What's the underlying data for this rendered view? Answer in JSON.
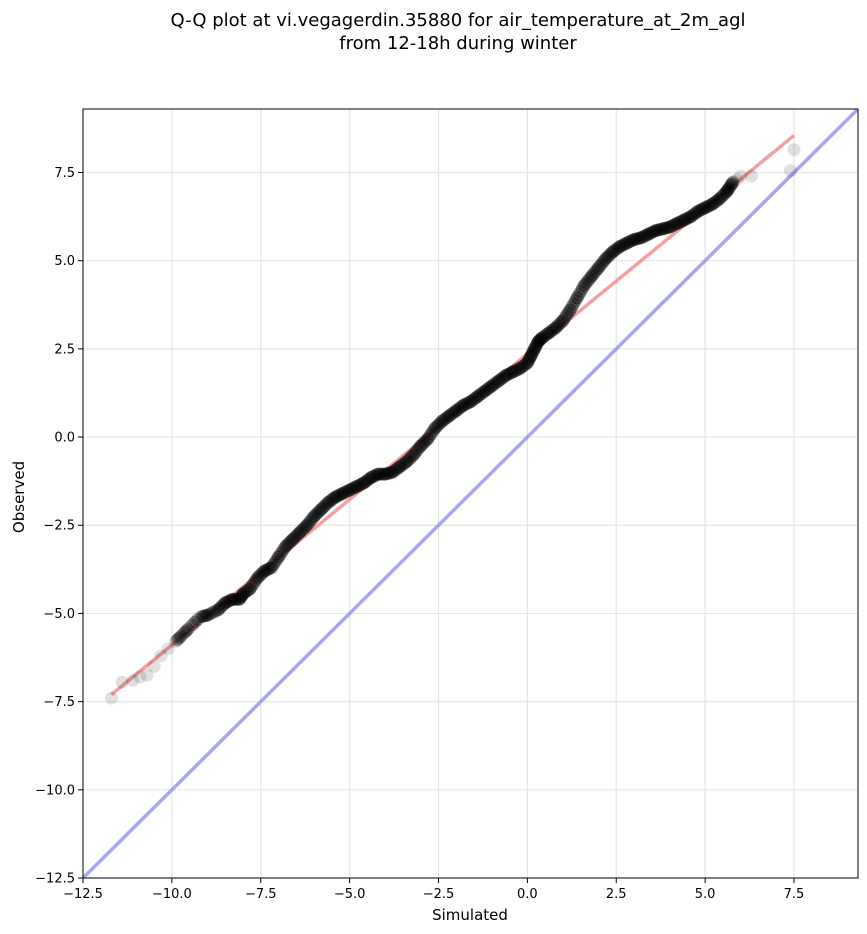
{
  "chart_data": {
    "type": "scatter",
    "title_line1": "Q-Q plot at vi.vegagerdin.35880 for air_temperature_at_2m_agl",
    "title_line2": "from 12-18h during winter",
    "xlabel": "Simulated",
    "ylabel": "Observed",
    "xlim": [
      -12.5,
      9.3
    ],
    "ylim": [
      -12.5,
      9.3
    ],
    "xticks": [
      -12.5,
      -10.0,
      -7.5,
      -5.0,
      -2.5,
      0.0,
      2.5,
      5.0,
      7.5
    ],
    "yticks": [
      -12.5,
      -10.0,
      -7.5,
      -5.0,
      -2.5,
      0.0,
      2.5,
      5.0,
      7.5
    ],
    "xtick_labels": [
      "−12.5",
      "−10.0",
      "−7.5",
      "−5.0",
      "−2.5",
      "0.0",
      "2.5",
      "5.0",
      "7.5"
    ],
    "ytick_labels": [
      "−12.5",
      "−10.0",
      "−7.5",
      "−5.0",
      "−2.5",
      "0.0",
      "2.5",
      "5.0",
      "7.5"
    ],
    "grid": true,
    "colors": {
      "points": "#000000",
      "fit_line": "#f08080",
      "identity_line": "#8888ee"
    },
    "identity_line": {
      "x": [
        -12.5,
        9.3
      ],
      "y": [
        -12.5,
        9.3
      ]
    },
    "fit_line": {
      "x": [
        -11.7,
        7.5
      ],
      "y": [
        -7.3,
        8.55
      ]
    },
    "points": {
      "x": [
        -11.7,
        -11.4,
        -11.1,
        -10.9,
        -10.7,
        -10.5,
        -10.3,
        -10.1,
        -9.9,
        -9.7,
        -9.5,
        -9.2,
        -9.0,
        -8.7,
        -8.5,
        -8.3,
        -8.1,
        -8.0,
        -7.8,
        -7.6,
        -7.4,
        -7.2,
        -7.0,
        -6.8,
        -6.6,
        -6.4,
        -6.2,
        -6.0,
        -5.8,
        -5.6,
        -5.4,
        -5.2,
        -5.0,
        -4.8,
        -4.6,
        -4.4,
        -4.2,
        -4.0,
        -3.8,
        -3.6,
        -3.4,
        -3.2,
        -3.0,
        -2.8,
        -2.6,
        -2.4,
        -2.2,
        -2.0,
        -1.8,
        -1.6,
        -1.4,
        -1.2,
        -1.0,
        -0.8,
        -0.6,
        -0.4,
        -0.2,
        0.0,
        0.1,
        0.2,
        0.3,
        0.4,
        0.6,
        0.8,
        1.0,
        1.2,
        1.4,
        1.6,
        1.8,
        2.0,
        2.2,
        2.4,
        2.6,
        2.8,
        3.0,
        3.2,
        3.4,
        3.6,
        3.8,
        4.0,
        4.2,
        4.4,
        4.6,
        4.8,
        5.0,
        5.2,
        5.4,
        5.6,
        5.7,
        5.8,
        5.9,
        6.0,
        6.3,
        7.4,
        7.5
      ],
      "y": [
        -7.4,
        -6.95,
        -6.9,
        -6.8,
        -6.75,
        -6.5,
        -6.2,
        -6.0,
        -5.8,
        -5.6,
        -5.4,
        -5.1,
        -5.05,
        -4.9,
        -4.7,
        -4.6,
        -4.6,
        -4.45,
        -4.3,
        -4.0,
        -3.8,
        -3.7,
        -3.4,
        -3.1,
        -2.9,
        -2.7,
        -2.5,
        -2.25,
        -2.05,
        -1.85,
        -1.7,
        -1.6,
        -1.5,
        -1.4,
        -1.3,
        -1.15,
        -1.05,
        -1.05,
        -1.0,
        -0.85,
        -0.7,
        -0.5,
        -0.25,
        -0.05,
        0.25,
        0.45,
        0.6,
        0.75,
        0.9,
        1.0,
        1.15,
        1.3,
        1.45,
        1.6,
        1.75,
        1.85,
        1.95,
        2.1,
        2.3,
        2.5,
        2.7,
        2.8,
        2.95,
        3.1,
        3.3,
        3.6,
        3.95,
        4.3,
        4.55,
        4.8,
        5.05,
        5.25,
        5.4,
        5.5,
        5.6,
        5.65,
        5.75,
        5.85,
        5.9,
        5.95,
        6.05,
        6.15,
        6.25,
        6.4,
        6.5,
        6.6,
        6.75,
        6.95,
        7.1,
        7.25,
        7.3,
        7.4,
        7.4,
        7.55,
        8.15
      ]
    }
  }
}
